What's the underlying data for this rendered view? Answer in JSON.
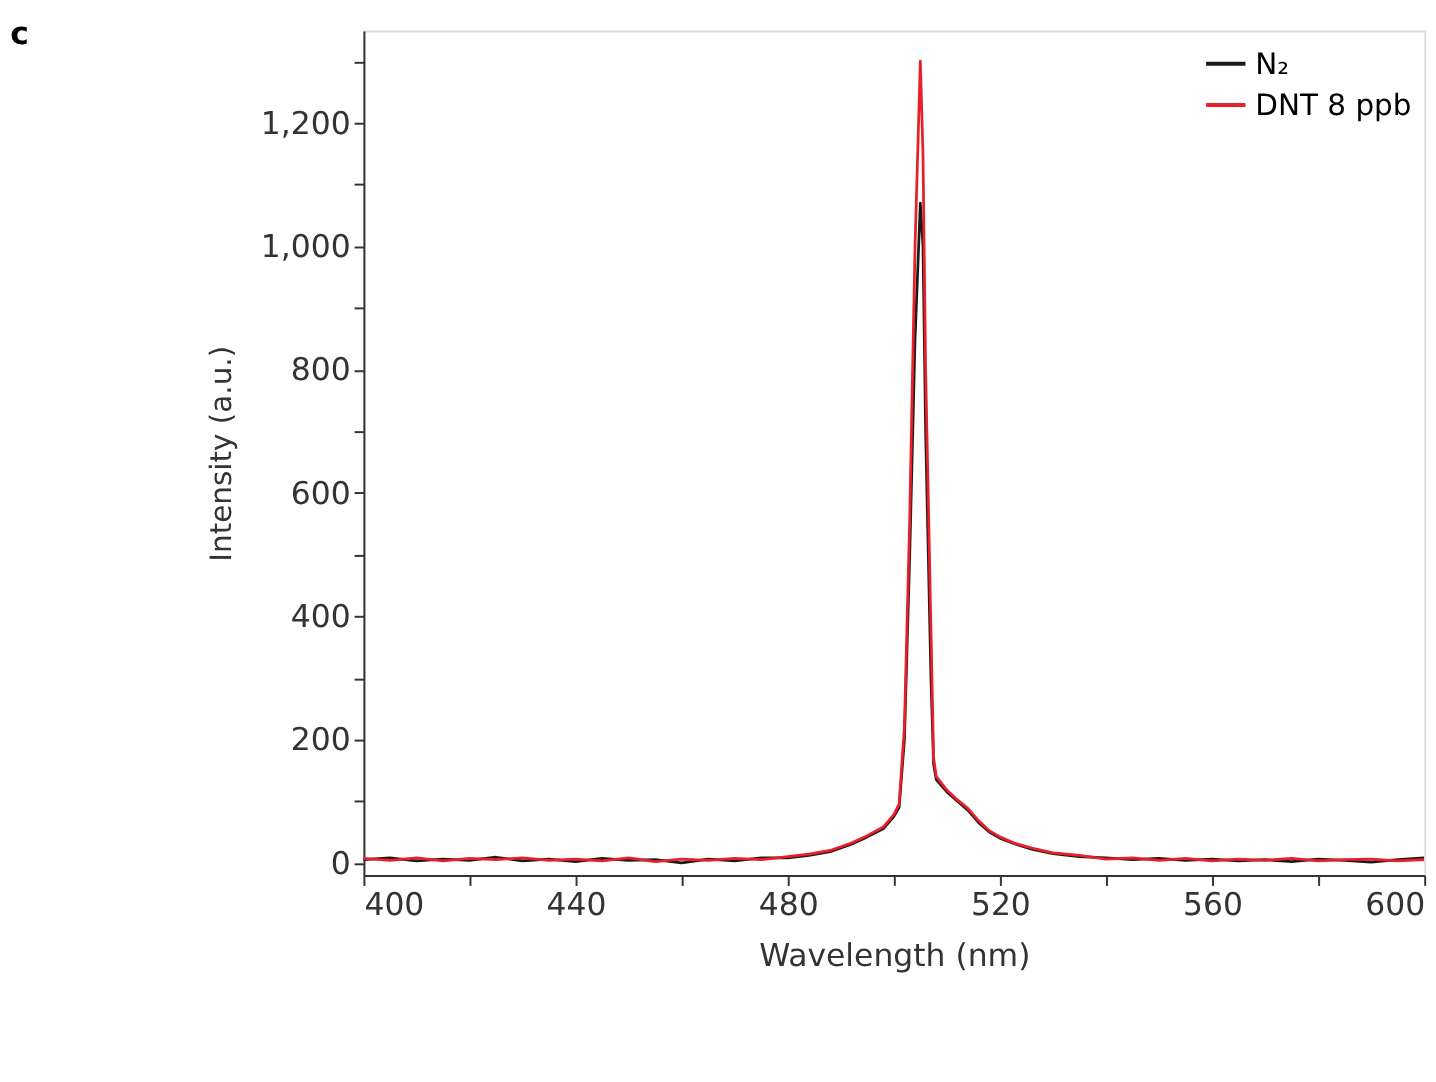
{
  "chart_data": {
    "type": "line",
    "title": "c",
    "xlabel": "Wavelength (nm)",
    "ylabel": "Intensity (a.u.)",
    "x": [
      400,
      405,
      410,
      415,
      420,
      425,
      430,
      435,
      440,
      445,
      450,
      455,
      460,
      465,
      470,
      475,
      480,
      484,
      488,
      492,
      495,
      498,
      500,
      501,
      502,
      503,
      504,
      505,
      505.5,
      506,
      507,
      507.5,
      508,
      510,
      512,
      514,
      516,
      518,
      520,
      523,
      526,
      530,
      535,
      540,
      545,
      550,
      555,
      560,
      565,
      570,
      575,
      580,
      585,
      590,
      595,
      600
    ],
    "series": [
      {
        "name": "N₂",
        "color": "#1a1a1a",
        "values": [
          5,
          8,
          3,
          6,
          4,
          9,
          3,
          6,
          2,
          7,
          4,
          5,
          0,
          6,
          3,
          8,
          8,
          12,
          18,
          30,
          42,
          55,
          75,
          90,
          200,
          500,
          850,
          1070,
          1000,
          700,
          300,
          160,
          135,
          115,
          100,
          85,
          65,
          50,
          40,
          30,
          22,
          15,
          10,
          8,
          5,
          7,
          4,
          6,
          3,
          5,
          2,
          6,
          4,
          1,
          5,
          8
        ]
      },
      {
        "name": "DNT 8 ppb",
        "color": "#e8202a",
        "values": [
          7,
          4,
          8,
          3,
          7,
          5,
          8,
          4,
          6,
          3,
          8,
          2,
          6,
          4,
          7,
          5,
          10,
          14,
          20,
          32,
          44,
          58,
          78,
          95,
          220,
          560,
          1000,
          1300,
          1150,
          800,
          380,
          170,
          140,
          118,
          102,
          88,
          68,
          52,
          42,
          31,
          24,
          16,
          12,
          6,
          8,
          4,
          7,
          3,
          6,
          4,
          7,
          3,
          5,
          6,
          3,
          5
        ]
      }
    ],
    "xlim": [
      400,
      600
    ],
    "xticks": [
      400,
      {
        "value": 420,
        "label": null
      },
      440,
      {
        "value": 460,
        "label": null
      },
      480,
      {
        "value": 500,
        "label": null
      },
      520,
      {
        "value": 540,
        "label": null
      },
      560,
      {
        "value": 580,
        "label": null
      },
      600
    ],
    "ylim": [
      -20,
      1350
    ],
    "yticks": [
      0,
      {
        "value": 100,
        "label": null
      },
      200,
      {
        "value": 300,
        "label": null
      },
      400,
      {
        "value": 500,
        "label": null
      },
      600,
      {
        "value": 700,
        "label": null
      },
      800,
      {
        "value": 900,
        "label": null
      },
      {
        "value": 1000,
        "label": "1,000"
      },
      {
        "value": 1100,
        "label": null
      },
      {
        "value": 1200,
        "label": "1,200"
      },
      {
        "value": 1300,
        "label": null
      }
    ],
    "grid": false,
    "legend": "top right",
    "marker": "none",
    "line_style": "solid"
  }
}
